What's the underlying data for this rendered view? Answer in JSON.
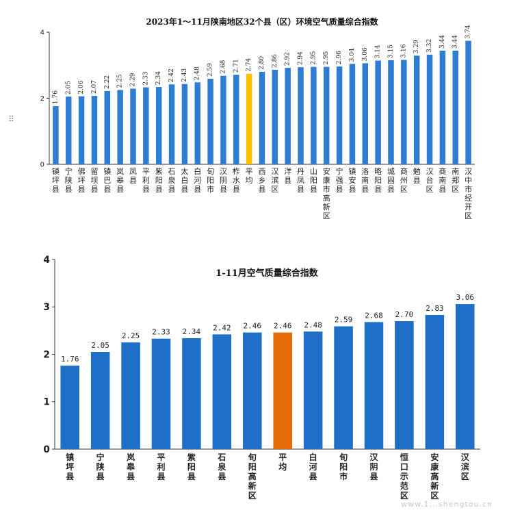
{
  "handle_glyph": "⠿",
  "watermark": "www.1...shengtou.cn",
  "colors": {
    "bar": "#2f7dd3",
    "bar2": "#1f6fc6",
    "highlight1": "#ffc000",
    "highlight2": "#e36c09",
    "axis": "#333333"
  },
  "chart_data": [
    {
      "type": "bar",
      "title": "2023年1～11月陕南地区32个县（区）环境空气质量综合指数",
      "xlabel": "",
      "ylabel": "",
      "ylim": [
        0,
        4
      ],
      "yticks": [
        0,
        2,
        4
      ],
      "categories": [
        "镇坪县",
        "宁陕县",
        "佛坪县",
        "留坝县",
        "镇巴县",
        "岚皋县",
        "凤县",
        "平利县",
        "紫阳县",
        "石泉县",
        "太白县",
        "白河县",
        "旬阳市",
        "汉阴县",
        "柞水县",
        "平均",
        "西乡县",
        "汉滨区",
        "洋县",
        "丹凤县",
        "山阳县",
        "安康市高新区",
        "宁强县",
        "镇安县",
        "洛南县",
        "略阳县",
        "城固县",
        "商州区",
        "勉县",
        "汉台区",
        "商南县",
        "南郑区",
        "汉中市经开区"
      ],
      "values": [
        1.76,
        2.05,
        2.06,
        2.07,
        2.22,
        2.25,
        2.29,
        2.33,
        2.34,
        2.42,
        2.43,
        2.48,
        2.59,
        2.68,
        2.71,
        2.74,
        2.8,
        2.86,
        2.92,
        2.94,
        2.95,
        2.95,
        2.96,
        3.04,
        3.06,
        3.14,
        3.15,
        3.16,
        3.29,
        3.32,
        3.44,
        3.44,
        3.74
      ],
      "value_labels": [
        "1.76",
        "2.05",
        "2.06",
        "2.07",
        "2.22",
        "2.25",
        "2.29",
        "2.33",
        "2.34",
        "2.42",
        "2.43",
        "2.48",
        "2.59",
        "2.68",
        "2.71",
        "2.74",
        "2.80",
        "2.86",
        "2.92",
        "2.94",
        "2.95",
        "2.95",
        "2.96",
        "3.04",
        "3.06",
        "3.14",
        "3.15",
        "3.16",
        "3.29",
        "3.32",
        "3.44",
        "3.44",
        "3.74"
      ],
      "highlight_category": "平均"
    },
    {
      "type": "bar",
      "title": "1-11月空气质量综合指数",
      "xlabel": "",
      "ylabel": "",
      "ylim": [
        0,
        4
      ],
      "yticks": [
        0,
        1,
        2,
        3,
        4
      ],
      "categories": [
        "镇坪县",
        "宁陕县",
        "岚皋县",
        "平利县",
        "紫阳县",
        "石泉县",
        "旬阳高新区",
        "平均",
        "白河县",
        "旬阳市",
        "汉阴县",
        "恒口示范区",
        "安康高新区",
        "汉滨区"
      ],
      "values": [
        1.76,
        2.05,
        2.25,
        2.33,
        2.34,
        2.42,
        2.46,
        2.46,
        2.48,
        2.59,
        2.68,
        2.7,
        2.83,
        3.06
      ],
      "value_labels": [
        "1.76",
        "2.05",
        "2.25",
        "2.33",
        "2.34",
        "2.42",
        "2.46",
        "2.46",
        "2.48",
        "2.59",
        "2.68",
        "2.70",
        "2.83",
        "3.06"
      ],
      "highlight_category": "平均"
    }
  ]
}
